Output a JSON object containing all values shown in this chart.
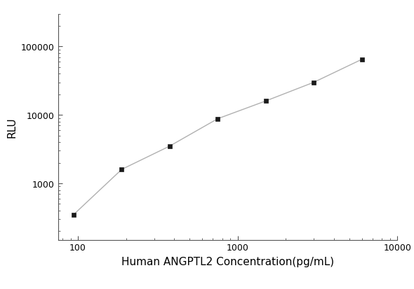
{
  "x": [
    94,
    188,
    375,
    750,
    1500,
    3000,
    6000
  ],
  "y": [
    350,
    1600,
    3500,
    8800,
    16000,
    30000,
    65000
  ],
  "line_color": "#b0b0b0",
  "marker_color": "#1a1a1a",
  "marker_size": 5,
  "xlabel": "Human ANGPTL2 Concentration(pg/mL)",
  "ylabel": "RLU",
  "xlim": [
    75,
    10000
  ],
  "ylim": [
    150,
    300000
  ],
  "xlabel_fontsize": 11,
  "ylabel_fontsize": 11,
  "tick_fontsize": 9,
  "background_color": "#ffffff"
}
